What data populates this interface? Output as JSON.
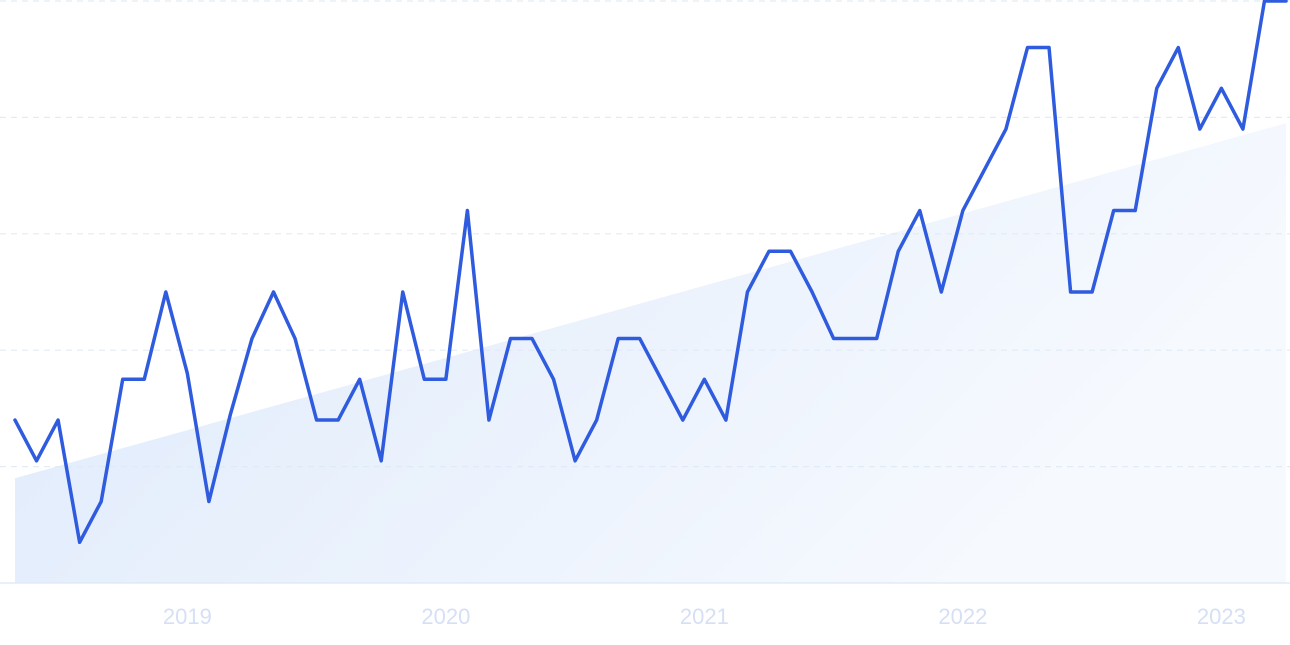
{
  "chart_data": {
    "type": "line",
    "categories": [
      null,
      null,
      null,
      null,
      null,
      null,
      null,
      null,
      "2019",
      null,
      null,
      null,
      null,
      null,
      null,
      null,
      null,
      null,
      null,
      null,
      "2020",
      null,
      null,
      null,
      null,
      null,
      null,
      null,
      null,
      null,
      null,
      null,
      "2021",
      null,
      null,
      null,
      null,
      null,
      null,
      null,
      null,
      null,
      null,
      null,
      "2022",
      null,
      null,
      null,
      null,
      null,
      null,
      null,
      null,
      null,
      null,
      null,
      "2023",
      null,
      null,
      null
    ],
    "values": [
      28,
      21,
      28,
      7,
      14,
      35,
      35,
      50,
      36,
      14,
      29,
      42,
      50,
      42,
      28,
      28,
      35,
      21,
      50,
      35,
      35,
      64,
      28,
      42,
      42,
      35,
      21,
      28,
      42,
      42,
      35,
      28,
      35,
      28,
      50,
      57,
      57,
      50,
      42,
      42,
      42,
      57,
      64,
      50,
      64,
      71,
      78,
      92,
      92,
      50,
      50,
      64,
      64,
      85,
      92,
      78,
      85,
      78,
      100,
      100
    ],
    "color": "#2f5bde",
    "trend": [
      18,
      79
    ],
    "trend_color": "#dde9fb",
    "ylim": [
      0,
      100
    ],
    "yticks": [
      0,
      20,
      40,
      60,
      80,
      100
    ],
    "grid": true
  }
}
